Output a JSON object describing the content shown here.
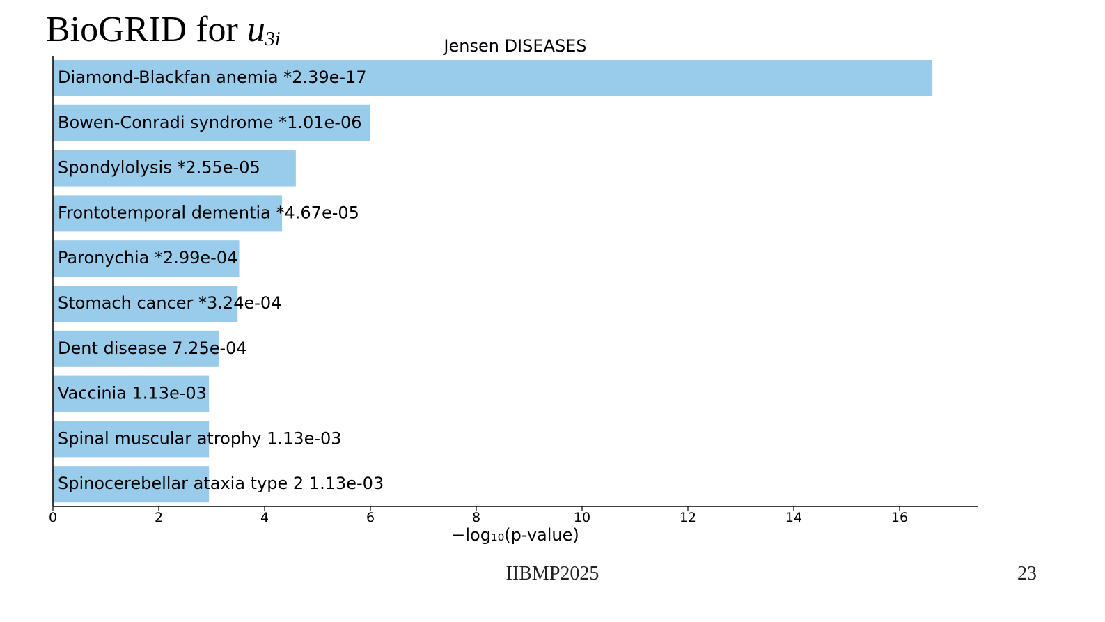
{
  "slide": {
    "title_prefix": "BioGRID for ",
    "title_var": "u",
    "title_sub": "3i",
    "footer": "IIBMP2025",
    "page_number": "23"
  },
  "chart_data": {
    "type": "bar",
    "orientation": "horizontal",
    "title": "Jensen DISEASES",
    "xlabel": "−log₁₀(p-value)",
    "ylabel": "",
    "xlim": [
      0,
      17.5
    ],
    "xticks": [
      0,
      2,
      4,
      6,
      8,
      10,
      12,
      14,
      16
    ],
    "bar_color": "#99cbeb",
    "categories": [
      "Diamond-Blackfan anemia",
      "Bowen-Conradi syndrome",
      "Spondylolysis",
      "Frontotemporal dementia",
      "Paronychia",
      "Stomach cancer",
      "Dent disease",
      "Vaccinia",
      "Spinal muscular atrophy",
      "Spinocerebellar ataxia type 2"
    ],
    "values": [
      16.62,
      6.0,
      4.59,
      4.33,
      3.52,
      3.49,
      3.14,
      2.95,
      2.95,
      2.95
    ],
    "labels": [
      "Diamond-Blackfan anemia  *2.39e-17",
      "Bowen-Conradi syndrome  *1.01e-06",
      "Spondylolysis  *2.55e-05",
      "Frontotemporal dementia  *4.67e-05",
      "Paronychia  *2.99e-04",
      "Stomach cancer  *3.24e-04",
      "Dent disease  7.25e-04",
      "Vaccinia  1.13e-03",
      "Spinal muscular atrophy  1.13e-03",
      "Spinocerebellar ataxia type 2  1.13e-03"
    ]
  }
}
